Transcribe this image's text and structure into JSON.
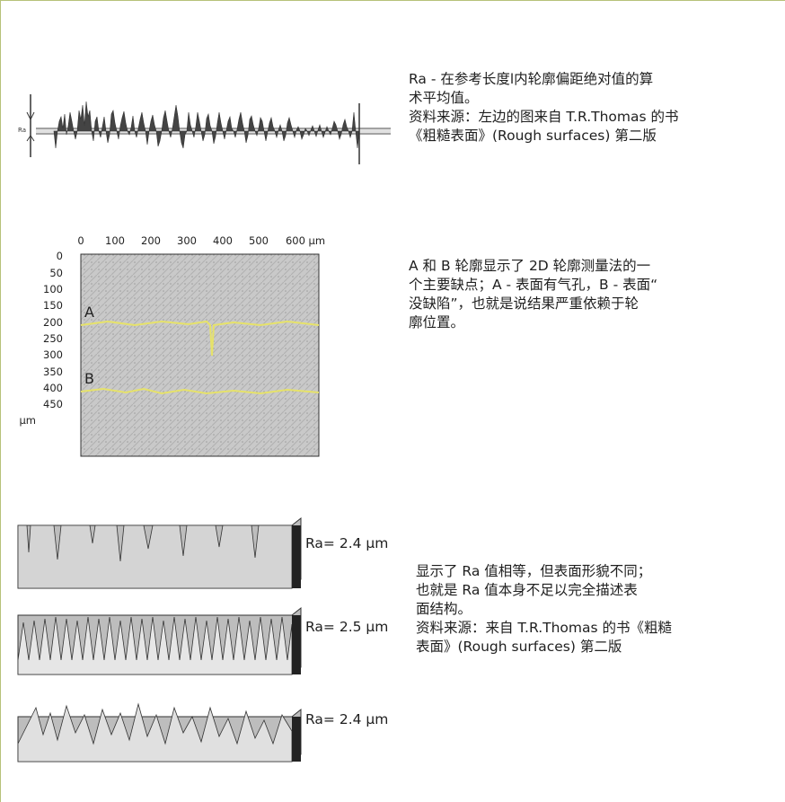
{
  "sections": [
    {
      "text": [
        "Ra - 在参考长度l内轮廓偏距绝对值的算",
        "术平均值。",
        "资料来源：左边的图来自 T.R.Thomas 的书",
        "《粗糙表面》(Rough surfaces) 第二版"
      ]
    },
    {
      "text": [
        "A 和 B 轮廓显示了 2D 轮廓测量法的一",
        "个主要缺点；A - 表面有气孔，B - 表面“",
        "没缺陷”，也就是说结果严重依赖于轮",
        "廓位置。"
      ]
    },
    {
      "text": [
        "显示了 Ra 值相等，但表面形貌不同；",
        "也就是 Ra 值本身不足以完全描述表",
        "面结构。",
        "资料来源：来自 T.R.Thomas 的书《粗糙",
        "表面》(Rough surfaces) 第二版"
      ]
    }
  ],
  "profile_figure": {
    "ra_symbol": "Ra"
  },
  "micrograph": {
    "x_ticks": [
      "0",
      "100",
      "200",
      "300",
      "400",
      "500",
      "600 μm"
    ],
    "y_ticks": [
      "0",
      "50",
      "100",
      "150",
      "200",
      "250",
      "300",
      "350",
      "400",
      "450",
      "μm"
    ],
    "label_a": "A",
    "label_b": "B"
  },
  "surface_blocks": [
    {
      "ra": "Ra= 2.4 μm"
    },
    {
      "ra": "Ra= 2.5 μm"
    },
    {
      "ra": "Ra= 2.4 μm"
    }
  ]
}
